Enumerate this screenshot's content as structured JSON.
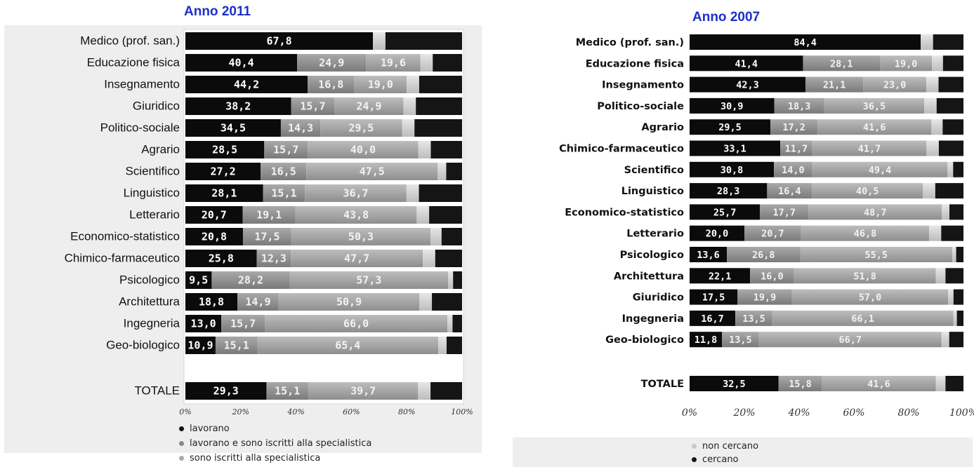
{
  "colors": {
    "lavorano": "#0b0b0b",
    "lavorano_e_iscritti": "#8a8a8a",
    "iscritti": "#9c9c9c",
    "non_cercano": "#c9c9c9",
    "cercano": "#151515",
    "title": "#1c2fc8",
    "panel_bg": "#eeeeee"
  },
  "chart_data": [
    {
      "type": "bar",
      "orientation": "horizontal",
      "stacked": true,
      "title": "Anno 2011",
      "xlim": [
        0,
        100
      ],
      "x_ticks": [
        "0%",
        "20%",
        "40%",
        "60%",
        "80%",
        "100%"
      ],
      "categories": [
        "Medico (prof. san.)",
        "Educazione fisica",
        "Insegnamento",
        "Giuridico",
        "Politico-sociale",
        "Agrario",
        "Scientifico",
        "Linguistico",
        "Letterario",
        "Economico-statistico",
        "Chimico-farmaceutico",
        "Psicologico",
        "Architettura",
        "Ingegneria",
        "Geo-biologico",
        "TOTALE"
      ],
      "series": [
        {
          "name": "lavorano",
          "values": [
            67.8,
            40.4,
            44.2,
            38.2,
            34.5,
            28.5,
            27.2,
            28.1,
            20.7,
            20.8,
            25.8,
            9.5,
            18.8,
            13.0,
            10.9,
            29.3
          ],
          "labels": [
            "67,8",
            "40,4",
            "44,2",
            "38,2",
            "34,5",
            "28,5",
            "27,2",
            "28,1",
            "20,7",
            "20,8",
            "25,8",
            "9,5",
            "18,8",
            "13,0",
            "10,9",
            "29,3"
          ]
        },
        {
          "name": "lavorano e sono iscritti alla specialistica",
          "values": [
            0.0,
            24.9,
            16.8,
            15.7,
            14.3,
            15.7,
            16.5,
            15.1,
            19.1,
            17.5,
            12.3,
            28.2,
            14.9,
            15.7,
            15.1,
            15.1
          ],
          "labels": [
            "",
            "24,9",
            "16,8",
            "15,7",
            "14,3",
            "15,7",
            "16,5",
            "15,1",
            "19,1",
            "17,5",
            "12,3",
            "28,2",
            "14,9",
            "15,7",
            "15,1",
            "15,1"
          ]
        },
        {
          "name": "sono iscritti alla specialistica",
          "values": [
            0.0,
            19.6,
            19.0,
            24.9,
            29.5,
            40.0,
            47.5,
            36.7,
            43.8,
            50.3,
            47.7,
            57.3,
            50.9,
            66.0,
            65.4,
            39.7
          ],
          "labels": [
            "",
            "19,6",
            "19,0",
            "24,9",
            "29,5",
            "40,0",
            "47,5",
            "36,7",
            "43,8",
            "50,3",
            "47,7",
            "57,3",
            "50,9",
            "66,0",
            "65,4",
            "39,7"
          ]
        }
      ],
      "legend": [
        "lavorano",
        "lavorano e sono iscritti alla specialistica",
        "sono iscritti alla specialistica"
      ]
    },
    {
      "type": "bar",
      "orientation": "horizontal",
      "stacked": true,
      "title": "Anno 2007",
      "xlim": [
        0,
        100
      ],
      "x_ticks": [
        "0%",
        "20%",
        "40%",
        "60%",
        "80%",
        "100%"
      ],
      "categories": [
        "Medico (prof. san.)",
        "Educazione fisica",
        "Insegnamento",
        "Politico-sociale",
        "Agrario",
        "Chimico-farmaceutico",
        "Scientifico",
        "Linguistico",
        "Economico-statistico",
        "Letterario",
        "Psicologico",
        "Architettura",
        "Giuridico",
        "Ingegneria",
        "Geo-biologico",
        "TOTALE"
      ],
      "series": [
        {
          "name": "lavorano",
          "values": [
            84.4,
            41.4,
            42.3,
            30.9,
            29.5,
            33.1,
            30.8,
            28.3,
            25.7,
            20.0,
            13.6,
            22.1,
            17.5,
            16.7,
            11.8,
            32.5
          ],
          "labels": [
            "84,4",
            "41,4",
            "42,3",
            "30,9",
            "29,5",
            "33,1",
            "30,8",
            "28,3",
            "25,7",
            "20,0",
            "13,6",
            "22,1",
            "17,5",
            "16,7",
            "11,8",
            "32,5"
          ]
        },
        {
          "name": "lavorano e sono iscritti alla specialistica",
          "values": [
            0.0,
            28.1,
            21.1,
            18.3,
            17.2,
            11.7,
            14.0,
            16.4,
            17.7,
            20.7,
            26.8,
            16.0,
            19.9,
            13.5,
            13.5,
            15.8
          ],
          "labels": [
            "",
            "28,1",
            "21,1",
            "18,3",
            "17,2",
            "11,7",
            "14,0",
            "16,4",
            "17,7",
            "20,7",
            "26,8",
            "16,0",
            "19,9",
            "13,5",
            "13,5",
            "15,8"
          ]
        },
        {
          "name": "sono iscritti alla specialistica",
          "values": [
            0.0,
            19.0,
            23.0,
            36.5,
            41.6,
            41.7,
            49.4,
            40.5,
            48.7,
            46.8,
            55.5,
            51.8,
            57.0,
            66.1,
            66.7,
            41.6
          ],
          "labels": [
            "",
            "19,0",
            "23,0",
            "36,5",
            "41,6",
            "41,7",
            "49,4",
            "40,5",
            "48,7",
            "46,8",
            "55,5",
            "51,8",
            "57,0",
            "66,1",
            "66,7",
            "41,6"
          ]
        }
      ],
      "legend": [
        "non cercano",
        "cercano"
      ]
    }
  ]
}
